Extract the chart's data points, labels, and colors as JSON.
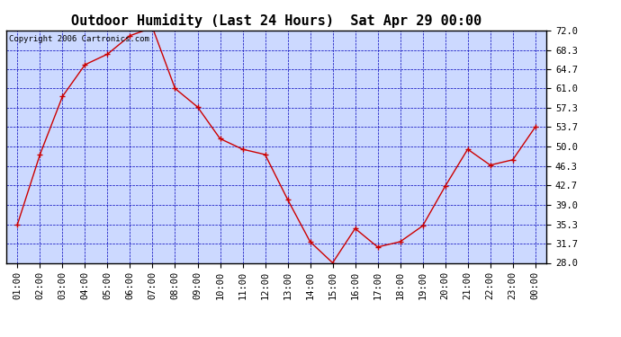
{
  "title": "Outdoor Humidity (Last 24 Hours)  Sat Apr 29 00:00",
  "copyright_text": "Copyright 2006 Cartronics.com",
  "x_labels": [
    "01:00",
    "02:00",
    "03:00",
    "04:00",
    "05:00",
    "06:00",
    "07:00",
    "08:00",
    "09:00",
    "10:00",
    "11:00",
    "12:00",
    "13:00",
    "14:00",
    "15:00",
    "16:00",
    "17:00",
    "18:00",
    "19:00",
    "20:00",
    "21:00",
    "22:00",
    "23:00",
    "00:00"
  ],
  "y_values": [
    35.3,
    48.5,
    59.5,
    65.5,
    67.5,
    71.0,
    72.5,
    61.0,
    57.5,
    51.5,
    49.5,
    48.5,
    40.0,
    32.0,
    28.0,
    34.5,
    31.0,
    32.0,
    35.0,
    42.5,
    49.5,
    46.5,
    47.5,
    53.7
  ],
  "line_color": "#cc0000",
  "marker_color": "#cc0000",
  "plot_bg_color": "#ccd9ff",
  "outer_bg_color": "#ffffff",
  "grid_color": "#0000bb",
  "axis_label_color": "#000000",
  "title_color": "#000000",
  "copyright_color": "#000000",
  "y_min": 28.0,
  "y_max": 72.0,
  "y_ticks": [
    28.0,
    31.7,
    35.3,
    39.0,
    42.7,
    46.3,
    50.0,
    53.7,
    57.3,
    61.0,
    64.7,
    68.3,
    72.0
  ],
  "title_fontsize": 11,
  "tick_fontsize": 7.5,
  "copyright_fontsize": 6.5
}
